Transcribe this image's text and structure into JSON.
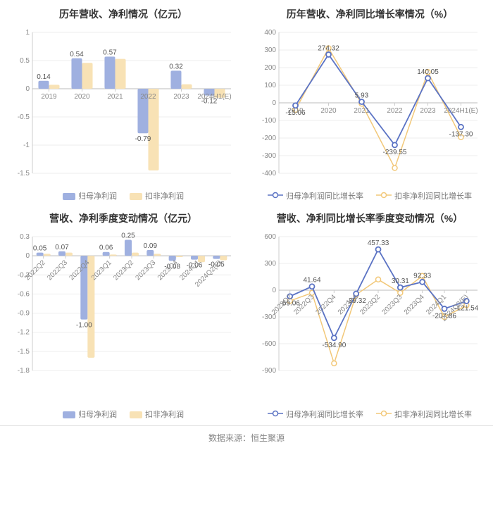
{
  "footer": "数据来源：恒生聚源",
  "colors": {
    "series1": "#5b73c4",
    "series1_light": "#9fb0e0",
    "series2": "#f2c879",
    "series2_light": "#f8e2b5",
    "grid": "#eeeeee",
    "axis": "#cccccc",
    "zero": "#bbbbbb",
    "text": "#888888",
    "title": "#333333"
  },
  "legend_bar": {
    "s1": "归母净利润",
    "s2": "扣非净利润"
  },
  "legend_line": {
    "s1": "归母净利润同比增长率",
    "s2": "扣非净利润同比增长率"
  },
  "charts": {
    "c1": {
      "title": "历年营收、净利情况（亿元）",
      "type": "bar",
      "categories": [
        "2019",
        "2020",
        "2021",
        "2022",
        "2023",
        "2024H1(E)"
      ],
      "s1": [
        0.14,
        0.54,
        0.57,
        -0.79,
        0.32,
        -0.12
      ],
      "s2": [
        0.07,
        0.46,
        0.53,
        -1.45,
        0.08,
        -0.16
      ],
      "labels": [
        "0.14",
        "0.54",
        "0.57",
        "-0.79",
        "0.32",
        "-0.12"
      ],
      "ylim": [
        -1.5,
        1
      ],
      "ystep": 0.5,
      "bar_width": 0.32
    },
    "c2": {
      "title": "历年营收、净利同比增长率情况（%）",
      "type": "line",
      "categories": [
        "2019",
        "2020",
        "2021",
        "2022",
        "2023",
        "2024H1(E)"
      ],
      "s1": [
        -15.06,
        274.32,
        5.93,
        -239.55,
        140.05,
        -137.3
      ],
      "s2": [
        -40,
        310,
        -5,
        -370,
        175,
        -195
      ],
      "labels": [
        "-15.06",
        "274.32",
        "5.93",
        "-239.55",
        "140.05",
        "-137.30"
      ],
      "ylim": [
        -400,
        400
      ],
      "ystep": 100
    },
    "c3": {
      "title": "营收、净利季度变动情况（亿元）",
      "type": "bar",
      "categories": [
        "2022Q2",
        "2022Q3",
        "2022Q4",
        "2023Q1",
        "2023Q2",
        "2023Q3",
        "2023Q4",
        "2024Q1",
        "2024Q2(E)"
      ],
      "s1": [
        0.05,
        0.07,
        -1.0,
        0.06,
        0.25,
        0.09,
        -0.08,
        -0.06,
        -0.05
      ],
      "s2": [
        0.03,
        0.05,
        -1.6,
        0.02,
        0.05,
        0.03,
        -0.02,
        -0.1,
        -0.07
      ],
      "labels": [
        "0.05",
        "0.07",
        "-1.00",
        "0.06",
        "0.25",
        "0.09",
        "-0.08",
        "-0.06",
        "-0.05"
      ],
      "ylim": [
        -1.8,
        0.3
      ],
      "ystep": 0.3,
      "bar_width": 0.32,
      "rot": true
    },
    "c4": {
      "title": "营收、净利同比增长率季度变动情况（%）",
      "type": "line",
      "categories": [
        "2022Q2",
        "2022Q3",
        "2022Q4",
        "2023Q1",
        "2023Q2",
        "2023Q3",
        "2023Q4",
        "2024Q1",
        "2024Q2(E)"
      ],
      "s1": [
        -69.06,
        41.64,
        -534.9,
        -39.32,
        457.33,
        30.31,
        92.33,
        -207.86,
        -121.54
      ],
      "s2": [
        -120,
        -30,
        -820,
        -50,
        120,
        -30,
        160,
        -300,
        -170
      ],
      "labels": [
        "-69.06",
        "41.64",
        "-534.90",
        "-39.32",
        "457.33",
        "30.31",
        "92.33",
        "-207.86",
        "-121.54"
      ],
      "ylim": [
        -900,
        600
      ],
      "ystep": 300,
      "rot": true
    }
  }
}
